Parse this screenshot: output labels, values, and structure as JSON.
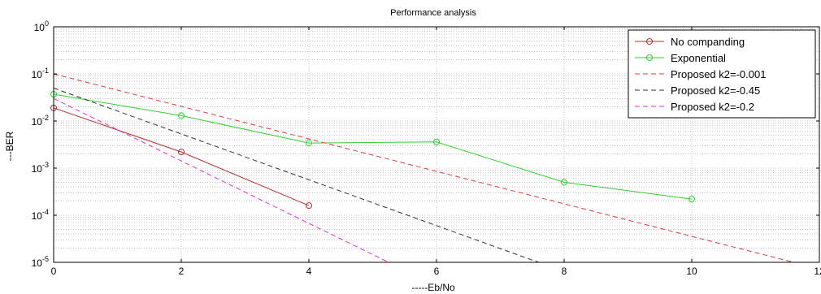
{
  "chart_data": {
    "type": "line",
    "title": "Performance analysis",
    "xlabel": "-----Eb/No",
    "ylabel": "---BER",
    "xlim": [
      0,
      12
    ],
    "ylim": [
      1e-05,
      1
    ],
    "yscale": "log",
    "grid": true,
    "legend_position": "top-right",
    "x_ticks": [
      "0",
      "2",
      "4",
      "6",
      "8",
      "10",
      "12"
    ],
    "y_ticks": [
      {
        "base": "10",
        "exp": "0"
      },
      {
        "base": "10",
        "exp": "-1"
      },
      {
        "base": "10",
        "exp": "-2"
      },
      {
        "base": "10",
        "exp": "-3"
      },
      {
        "base": "10",
        "exp": "-4"
      },
      {
        "base": "10",
        "exp": "-5"
      }
    ],
    "series": [
      {
        "name": "No companding",
        "color": "#b03030",
        "style": "solid",
        "marker": "circle",
        "x": [
          0,
          2,
          4
        ],
        "y": [
          0.019,
          0.0022,
          0.00016
        ]
      },
      {
        "name": "Exponential",
        "color": "#33cc33",
        "style": "solid",
        "marker": "circle",
        "x": [
          0,
          2,
          4,
          6,
          8,
          10
        ],
        "y": [
          0.037,
          0.013,
          0.0034,
          0.0036,
          0.0005,
          0.00022
        ]
      },
      {
        "name": "Proposed k2=-0.001",
        "color": "#d04040",
        "style": "dashed",
        "marker": "none",
        "x": [
          0,
          11.6
        ],
        "y": [
          0.1,
          1e-05
        ]
      },
      {
        "name": "Proposed k2=-0.45",
        "color": "#333333",
        "style": "dashed",
        "marker": "none",
        "x": [
          0,
          7.6
        ],
        "y": [
          0.05,
          1e-05
        ]
      },
      {
        "name": "Proposed k2=-0.2",
        "color": "#dd33dd",
        "style": "dashed",
        "marker": "none",
        "x": [
          0,
          5.25
        ],
        "y": [
          0.03,
          1e-05
        ]
      }
    ]
  }
}
